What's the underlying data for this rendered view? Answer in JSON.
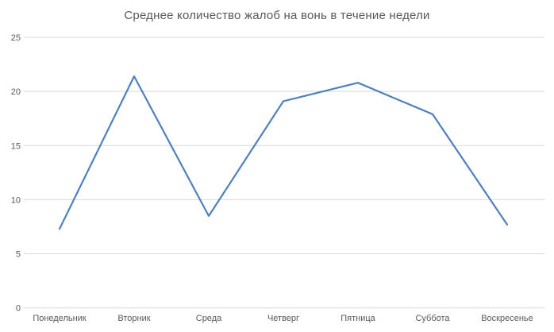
{
  "title": "Среднее количество жалоб на вонь в течение недели",
  "colors": {
    "background": "#ffffff",
    "line": "#4f81bd",
    "gridline": "#d9d9d9",
    "axis_text": "#595959",
    "title_text": "#595959"
  },
  "chart_data": {
    "type": "line",
    "title": "Среднее количество жалоб на вонь в течение недели",
    "categories": [
      "Понедельник",
      "Вторник",
      "Среда",
      "Четверг",
      "Пятница",
      "Суббота",
      "Воскресенье"
    ],
    "series": [
      {
        "name": "Среднее количество жалоб",
        "values": [
          7.3,
          21.4,
          8.5,
          19.1,
          20.8,
          17.9,
          7.7
        ]
      }
    ],
    "xlabel": "",
    "ylabel": "",
    "ylim": [
      0,
      25
    ],
    "yticks": [
      0,
      5,
      10,
      15,
      20,
      25
    ],
    "grid": "horizontal",
    "legend": "none",
    "markers": "none"
  }
}
